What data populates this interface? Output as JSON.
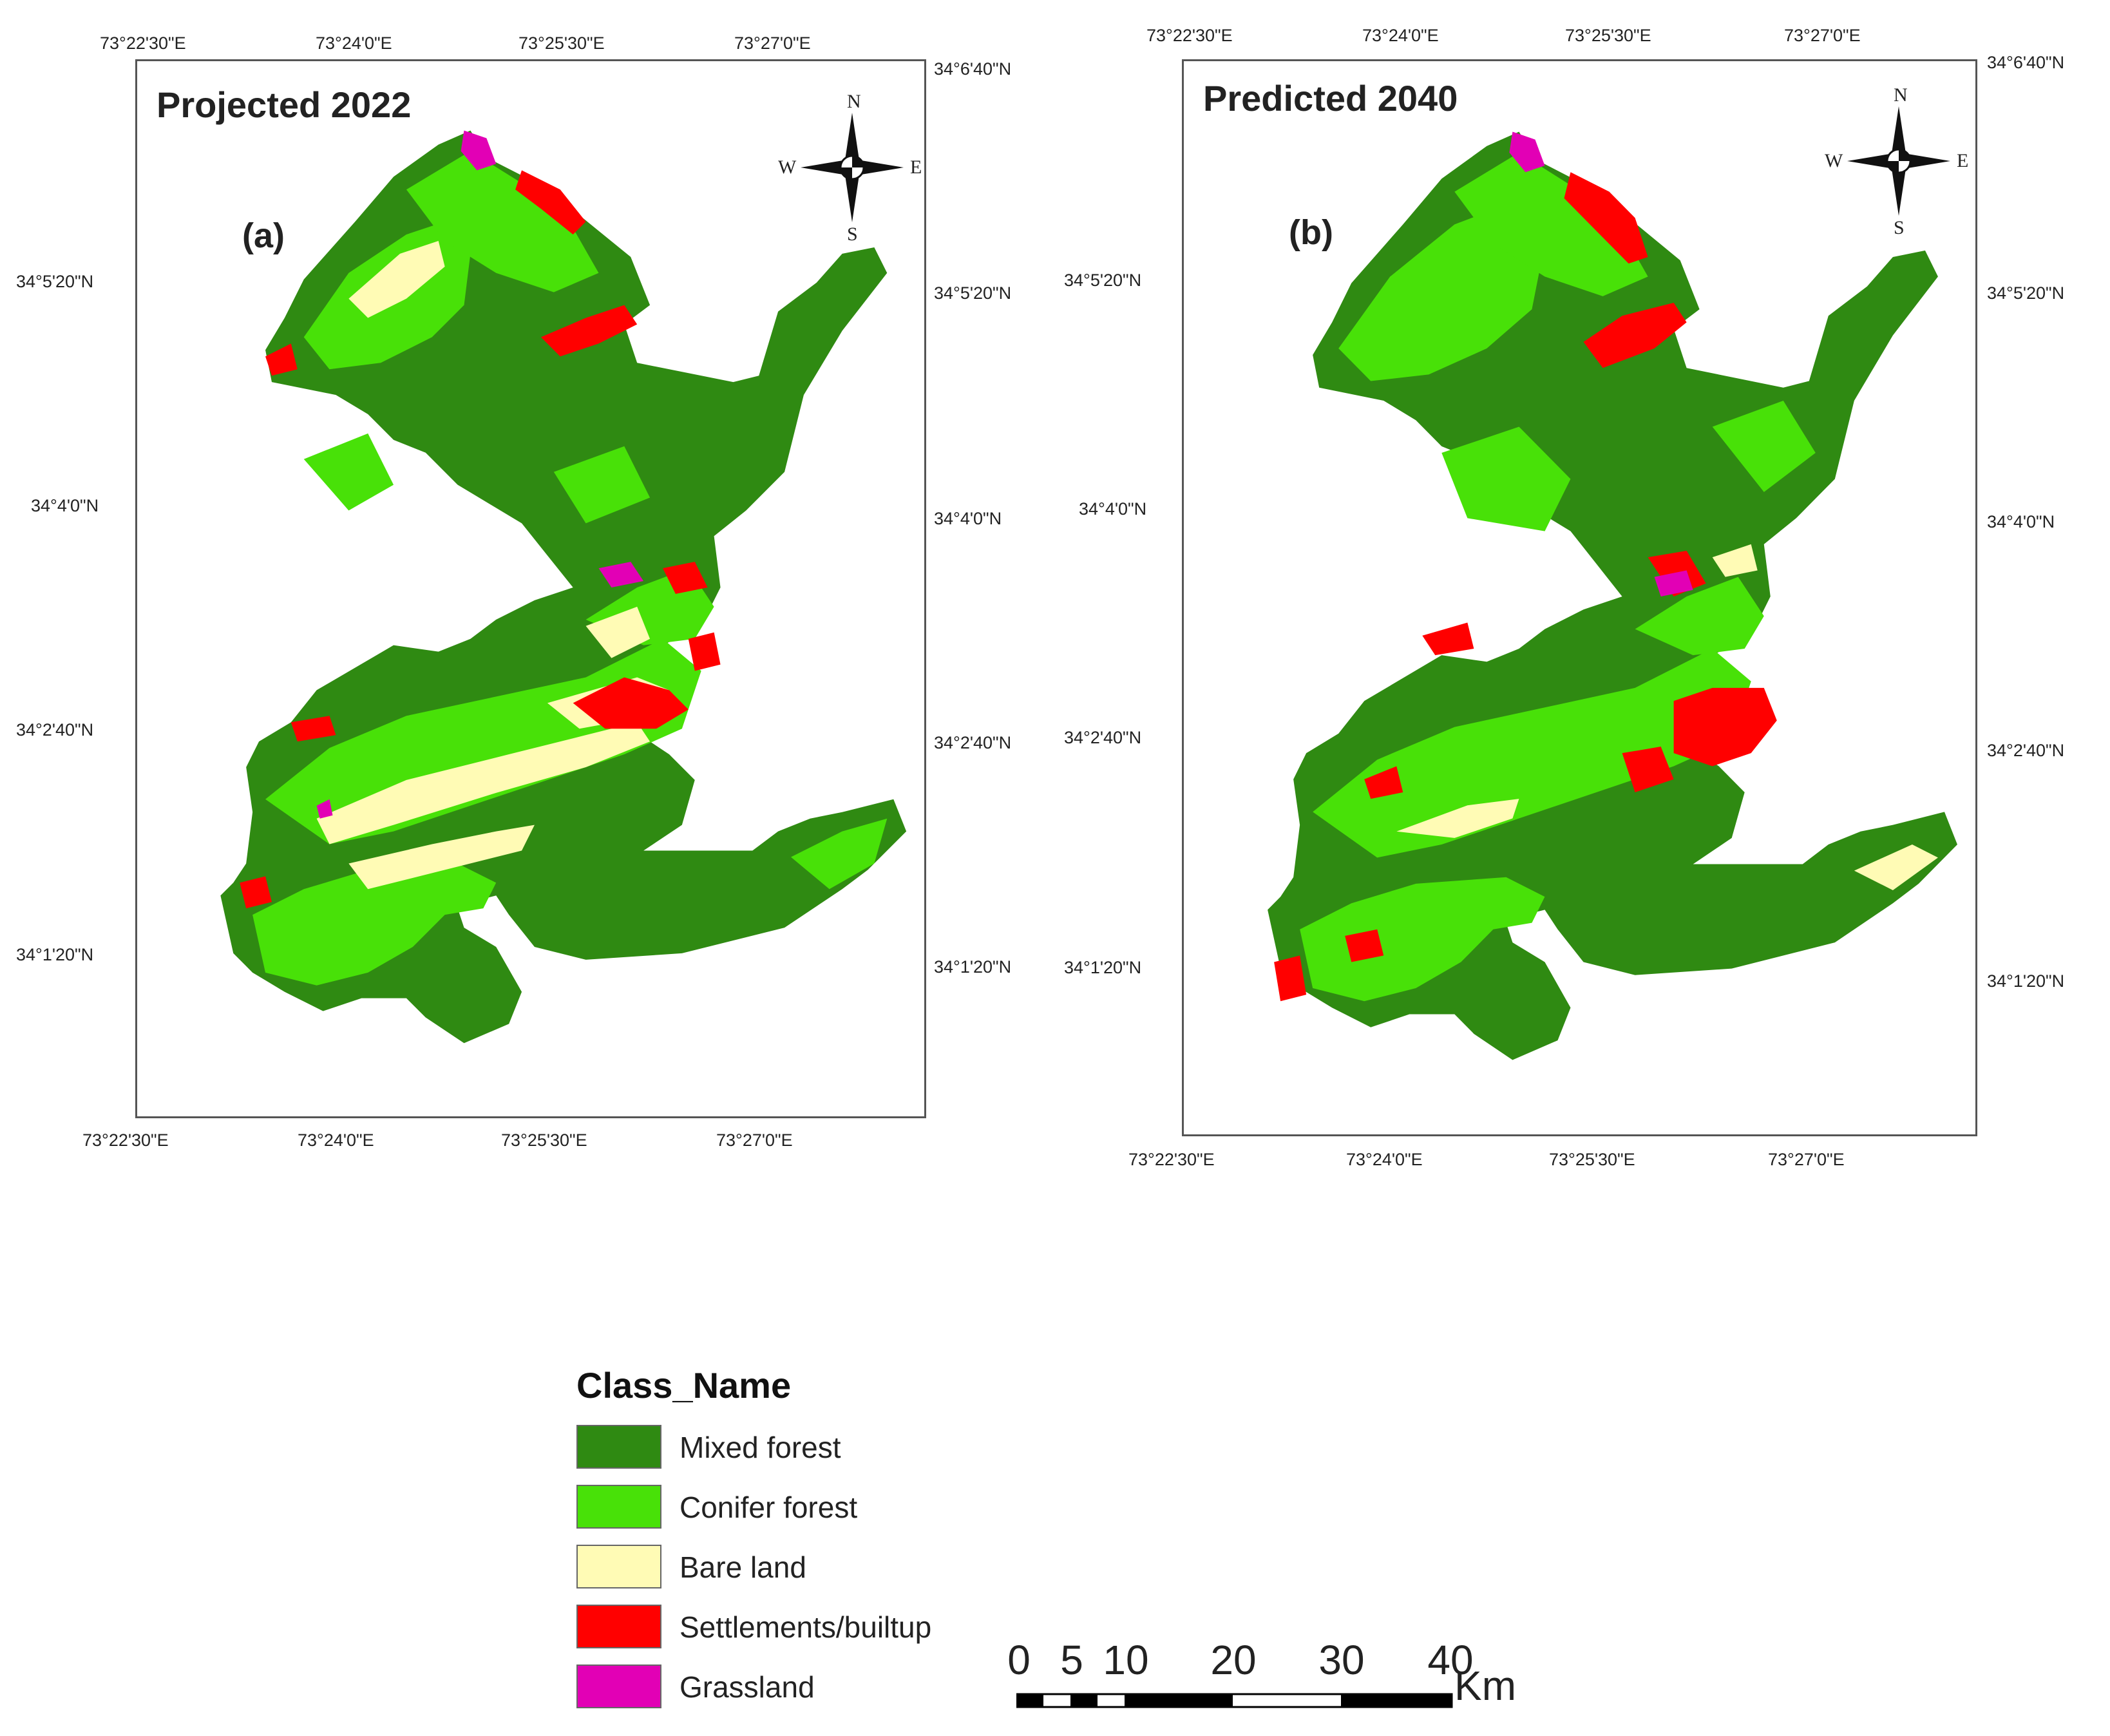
{
  "colors": {
    "mixed_forest": "#2f8a12",
    "conifer_forest": "#48e108",
    "bare_land": "#fffbb5",
    "settlements": "#ff0000",
    "grassland": "#e200b5"
  },
  "panels": [
    {
      "title": "Projected 2022",
      "letter": "(a)",
      "top_ticks": [
        "73°22'30\"E",
        "73°24'0\"E",
        "73°25'30\"E",
        "73°27'0\"E"
      ],
      "bottom_ticks": [
        "73°22'30\"E",
        "73°24'0\"E",
        "73°25'30\"E",
        "73°27'0\"E"
      ],
      "left_ticks": [
        "34°5'20\"N",
        "34°4'0\"N",
        "34°2'40\"N",
        "34°1'20\"N"
      ],
      "right_ticks": [
        "34°6'40\"N",
        "34°5'20\"N",
        "34°4'0\"N",
        "34°2'40\"N",
        "34°1'20\"N"
      ]
    },
    {
      "title": "Predicted 2040",
      "letter": "(b)",
      "top_ticks": [
        "73°22'30\"E",
        "73°24'0\"E",
        "73°25'30\"E",
        "73°27'0\"E"
      ],
      "bottom_ticks": [
        "73°22'30\"E",
        "73°24'0\"E",
        "73°25'30\"E",
        "73°27'0\"E"
      ],
      "left_ticks": [
        "34°5'20\"N",
        "34°4'0\"N",
        "34°2'40\"N",
        "34°1'20\"N"
      ],
      "right_ticks": [
        "34°6'40\"N",
        "34°5'20\"N",
        "34°4'0\"N",
        "34°2'40\"N",
        "34°1'20\"N"
      ]
    }
  ],
  "compass": {
    "n": "N",
    "s": "S",
    "e": "E",
    "w": "W"
  },
  "legend": {
    "title": "Class_Name",
    "items": [
      {
        "label": "Mixed forest",
        "color": "#2f8a12"
      },
      {
        "label": "Conifer forest",
        "color": "#48e108"
      },
      {
        "label": "Bare land",
        "color": "#fffbb5"
      },
      {
        "label": "Settlements/builtup",
        "color": "#ff0000"
      },
      {
        "label": "Grassland",
        "color": "#e200b5"
      }
    ]
  },
  "scale_bar": {
    "labels": [
      "0",
      "5",
      "10",
      "20",
      "30",
      "40"
    ],
    "unit": "Km"
  }
}
